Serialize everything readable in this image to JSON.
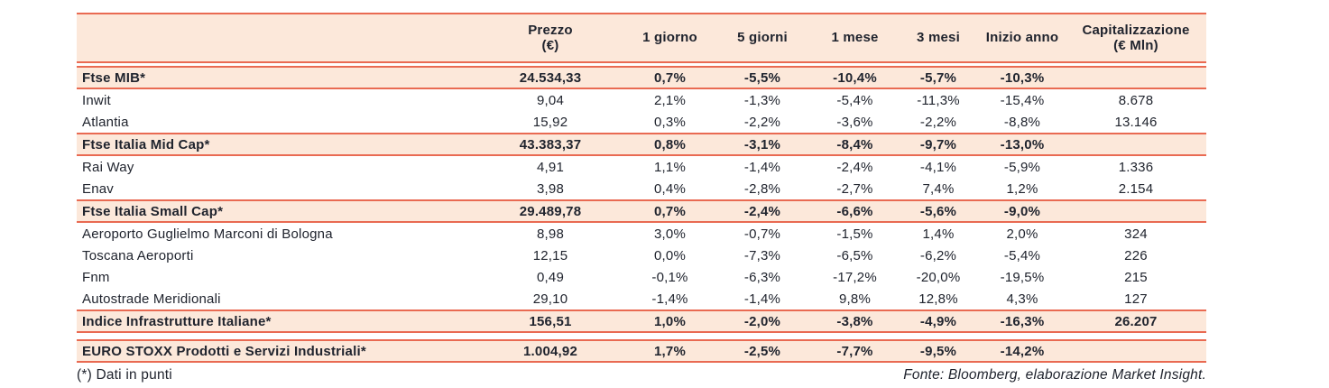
{
  "table": {
    "columns": {
      "name": {
        "l1": "",
        "l2": ""
      },
      "prezzo": {
        "l1": "Prezzo",
        "l2": "(€)"
      },
      "g1": {
        "l1": "1 giorno",
        "l2": ""
      },
      "g5": {
        "l1": "5 giorni",
        "l2": ""
      },
      "m1": {
        "l1": "1 mese",
        "l2": ""
      },
      "m3": {
        "l1": "3 mesi",
        "l2": ""
      },
      "ytd": {
        "l1": "Inizio anno",
        "l2": ""
      },
      "cap": {
        "l1": "Capitalizzazione",
        "l2": "(€ Mln)"
      }
    },
    "rows": [
      {
        "type": "index",
        "name": "Ftse MIB*",
        "cells": [
          "24.534,33",
          "0,7%",
          "-5,5%",
          "-10,4%",
          "-5,7%",
          "-10,3%",
          ""
        ]
      },
      {
        "type": "stock",
        "name": "Inwit",
        "cells": [
          "9,04",
          "2,1%",
          "-1,3%",
          "-5,4%",
          "-11,3%",
          "-15,4%",
          "8.678"
        ]
      },
      {
        "type": "stock",
        "name": "Atlantia",
        "cells": [
          "15,92",
          "0,3%",
          "-2,2%",
          "-3,6%",
          "-2,2%",
          "-8,8%",
          "13.146"
        ]
      },
      {
        "type": "index",
        "name": "Ftse Italia Mid Cap*",
        "cells": [
          "43.383,37",
          "0,8%",
          "-3,1%",
          "-8,4%",
          "-9,7%",
          "-13,0%",
          ""
        ]
      },
      {
        "type": "stock",
        "name": "Rai Way",
        "cells": [
          "4,91",
          "1,1%",
          "-1,4%",
          "-2,4%",
          "-4,1%",
          "-5,9%",
          "1.336"
        ]
      },
      {
        "type": "stock",
        "name": "Enav",
        "cells": [
          "3,98",
          "0,4%",
          "-2,8%",
          "-2,7%",
          "7,4%",
          "1,2%",
          "2.154"
        ]
      },
      {
        "type": "index",
        "name": "Ftse Italia Small Cap*",
        "cells": [
          "29.489,78",
          "0,7%",
          "-2,4%",
          "-6,6%",
          "-5,6%",
          "-9,0%",
          ""
        ]
      },
      {
        "type": "stock",
        "name": "Aeroporto Guglielmo Marconi di Bologna",
        "cells": [
          "8,98",
          "3,0%",
          "-0,7%",
          "-1,5%",
          "1,4%",
          "2,0%",
          "324"
        ]
      },
      {
        "type": "stock",
        "name": "Toscana Aeroporti",
        "cells": [
          "12,15",
          "0,0%",
          "-7,3%",
          "-6,5%",
          "-6,2%",
          "-5,4%",
          "226"
        ]
      },
      {
        "type": "stock",
        "name": "Fnm",
        "cells": [
          "0,49",
          "-0,1%",
          "-6,3%",
          "-17,2%",
          "-20,0%",
          "-19,5%",
          "215"
        ]
      },
      {
        "type": "stock",
        "name": "Autostrade Meridionali",
        "cells": [
          "29,10",
          "-1,4%",
          "-1,4%",
          "9,8%",
          "12,8%",
          "4,3%",
          "127"
        ]
      },
      {
        "type": "index",
        "name": "Indice Infrastrutture Italiane*",
        "cells": [
          "156,51",
          "1,0%",
          "-2,0%",
          "-3,8%",
          "-4,9%",
          "-16,3%",
          "26.207"
        ]
      },
      {
        "type": "index",
        "name": "EURO STOXX Prodotti e Servizi Industriali*",
        "cells": [
          "1.004,92",
          "1,7%",
          "-2,5%",
          "-7,7%",
          "-9,5%",
          "-14,2%",
          ""
        ]
      }
    ]
  },
  "footer": {
    "note": "(*) Dati in punti",
    "source": "Fonte: Bloomberg, elaborazione Market Insight."
  },
  "colors": {
    "accent_border": "#e96a52",
    "highlight_bg": "#fce8da",
    "text": "#20242e"
  }
}
